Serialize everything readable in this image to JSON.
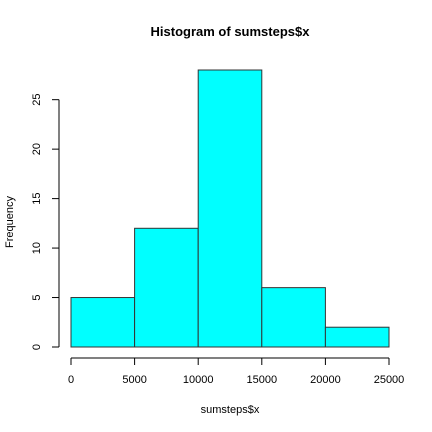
{
  "chart_data": {
    "type": "bar",
    "title": "Histogram of sumsteps$x",
    "xlabel": "sumsteps$x",
    "ylabel": "Frequency",
    "bins": [
      {
        "from": 0,
        "to": 5000,
        "count": 5
      },
      {
        "from": 5000,
        "to": 10000,
        "count": 12
      },
      {
        "from": 10000,
        "to": 15000,
        "count": 28
      },
      {
        "from": 15000,
        "to": 20000,
        "count": 6
      },
      {
        "from": 20000,
        "to": 25000,
        "count": 2
      }
    ],
    "xlim": [
      0,
      25000
    ],
    "ylim": [
      0,
      28
    ],
    "x_ticks": [
      0,
      5000,
      10000,
      15000,
      20000,
      25000
    ],
    "y_ticks": [
      0,
      5,
      10,
      15,
      20,
      25
    ],
    "bar_color": "#00ffff",
    "bar_border_color": "#333333",
    "grid": false
  }
}
